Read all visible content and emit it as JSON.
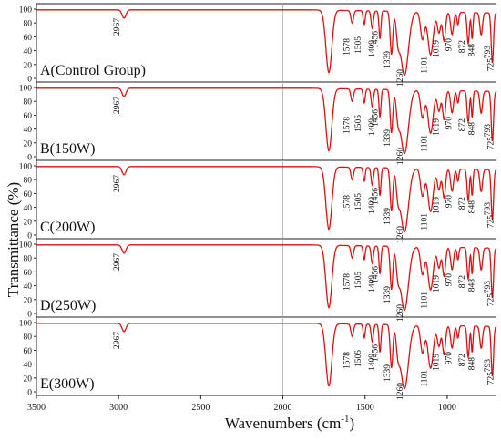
{
  "chart_data": {
    "type": "line",
    "ylabel": "Transmittance (%)",
    "xlabel": "Wavenumbers (cm",
    "xlabel_sup": "-1",
    "xlabel_end": ")",
    "xlim": [
      3500,
      700
    ],
    "x_ticks": [
      3500,
      3000,
      2500,
      2000,
      1500,
      1000
    ],
    "y_ticks": [
      0,
      20,
      40,
      60,
      80,
      100
    ],
    "ylim": [
      0,
      100
    ],
    "reference_line_x": 2000,
    "line_color": "#dd1111",
    "peak_labels": [
      "2967",
      "1578",
      "1505",
      "1456",
      "1409",
      "1339",
      "1260",
      "1101",
      "1019",
      "970",
      "872",
      "848",
      "793",
      "725"
    ],
    "peak_positions": [
      2967,
      1578,
      1505,
      1456,
      1409,
      1339,
      1260,
      1101,
      1019,
      970,
      872,
      848,
      793,
      725
    ],
    "peak_transmittance": [
      85,
      90,
      88,
      85,
      75,
      35,
      5,
      35,
      70,
      75,
      60,
      65,
      70,
      30
    ],
    "series": [
      {
        "name": "A(Control Group)"
      },
      {
        "name": "B(150W)"
      },
      {
        "name": "C(200W)"
      },
      {
        "name": "D(250W)"
      },
      {
        "name": "E(300W)"
      }
    ]
  }
}
